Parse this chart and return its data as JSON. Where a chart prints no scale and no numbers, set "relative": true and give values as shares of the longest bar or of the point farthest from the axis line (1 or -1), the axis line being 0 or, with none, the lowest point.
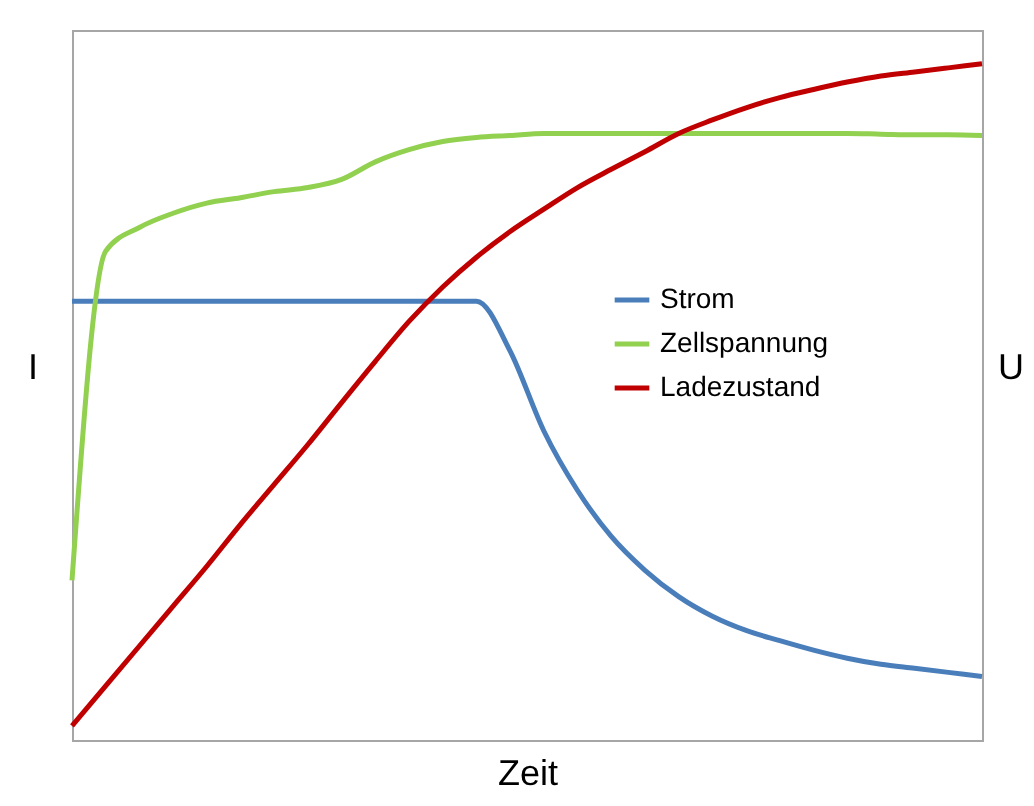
{
  "chart_data": {
    "type": "line",
    "relative": true,
    "xlabel": "Zeit",
    "ylabel": "I",
    "y2label": "U",
    "legend": "right",
    "grid": false,
    "marker": "none",
    "line_style": "solid",
    "categories": [
      null,
      null,
      null,
      null,
      null,
      null,
      null,
      null,
      null,
      null,
      null,
      null,
      null,
      null,
      null,
      null,
      null,
      null,
      null,
      null,
      null,
      null,
      null,
      null,
      null,
      null,
      null,
      null
    ],
    "series": [
      {
        "name": "Strom",
        "color": "#4a7ebb",
        "values": [
          0.649,
          0.649,
          0.649,
          0.649,
          0.649,
          0.649,
          0.649,
          0.649,
          0.649,
          0.649,
          0.649,
          0.649,
          0.649,
          0.575,
          0.457,
          0.369,
          0.301,
          0.251,
          0.212,
          0.183,
          0.162,
          0.147,
          0.133,
          0.121,
          0.112,
          0.106,
          0.1,
          0.094
        ]
      },
      {
        "name": "Zellspannung",
        "color": "#92d050",
        "values": [
          0.236,
          0.723,
          0.758,
          0.779,
          0.794,
          0.802,
          0.811,
          0.817,
          0.829,
          0.855,
          0.873,
          0.885,
          0.891,
          0.894,
          0.897,
          0.897,
          0.897,
          0.897,
          0.897,
          0.897,
          0.897,
          0.897,
          0.897,
          0.897,
          0.896,
          0.895,
          0.895,
          0.894
        ]
      },
      {
        "name": "Ladezustand",
        "color": "#c00000",
        "values": [
          0.021,
          0.08,
          0.139,
          0.198,
          0.257,
          0.319,
          0.378,
          0.437,
          0.499,
          0.56,
          0.619,
          0.67,
          0.714,
          0.752,
          0.785,
          0.817,
          0.844,
          0.87,
          0.897,
          0.917,
          0.935,
          0.95,
          0.962,
          0.973,
          0.982,
          0.988,
          0.994,
          1.0
        ]
      }
    ]
  }
}
